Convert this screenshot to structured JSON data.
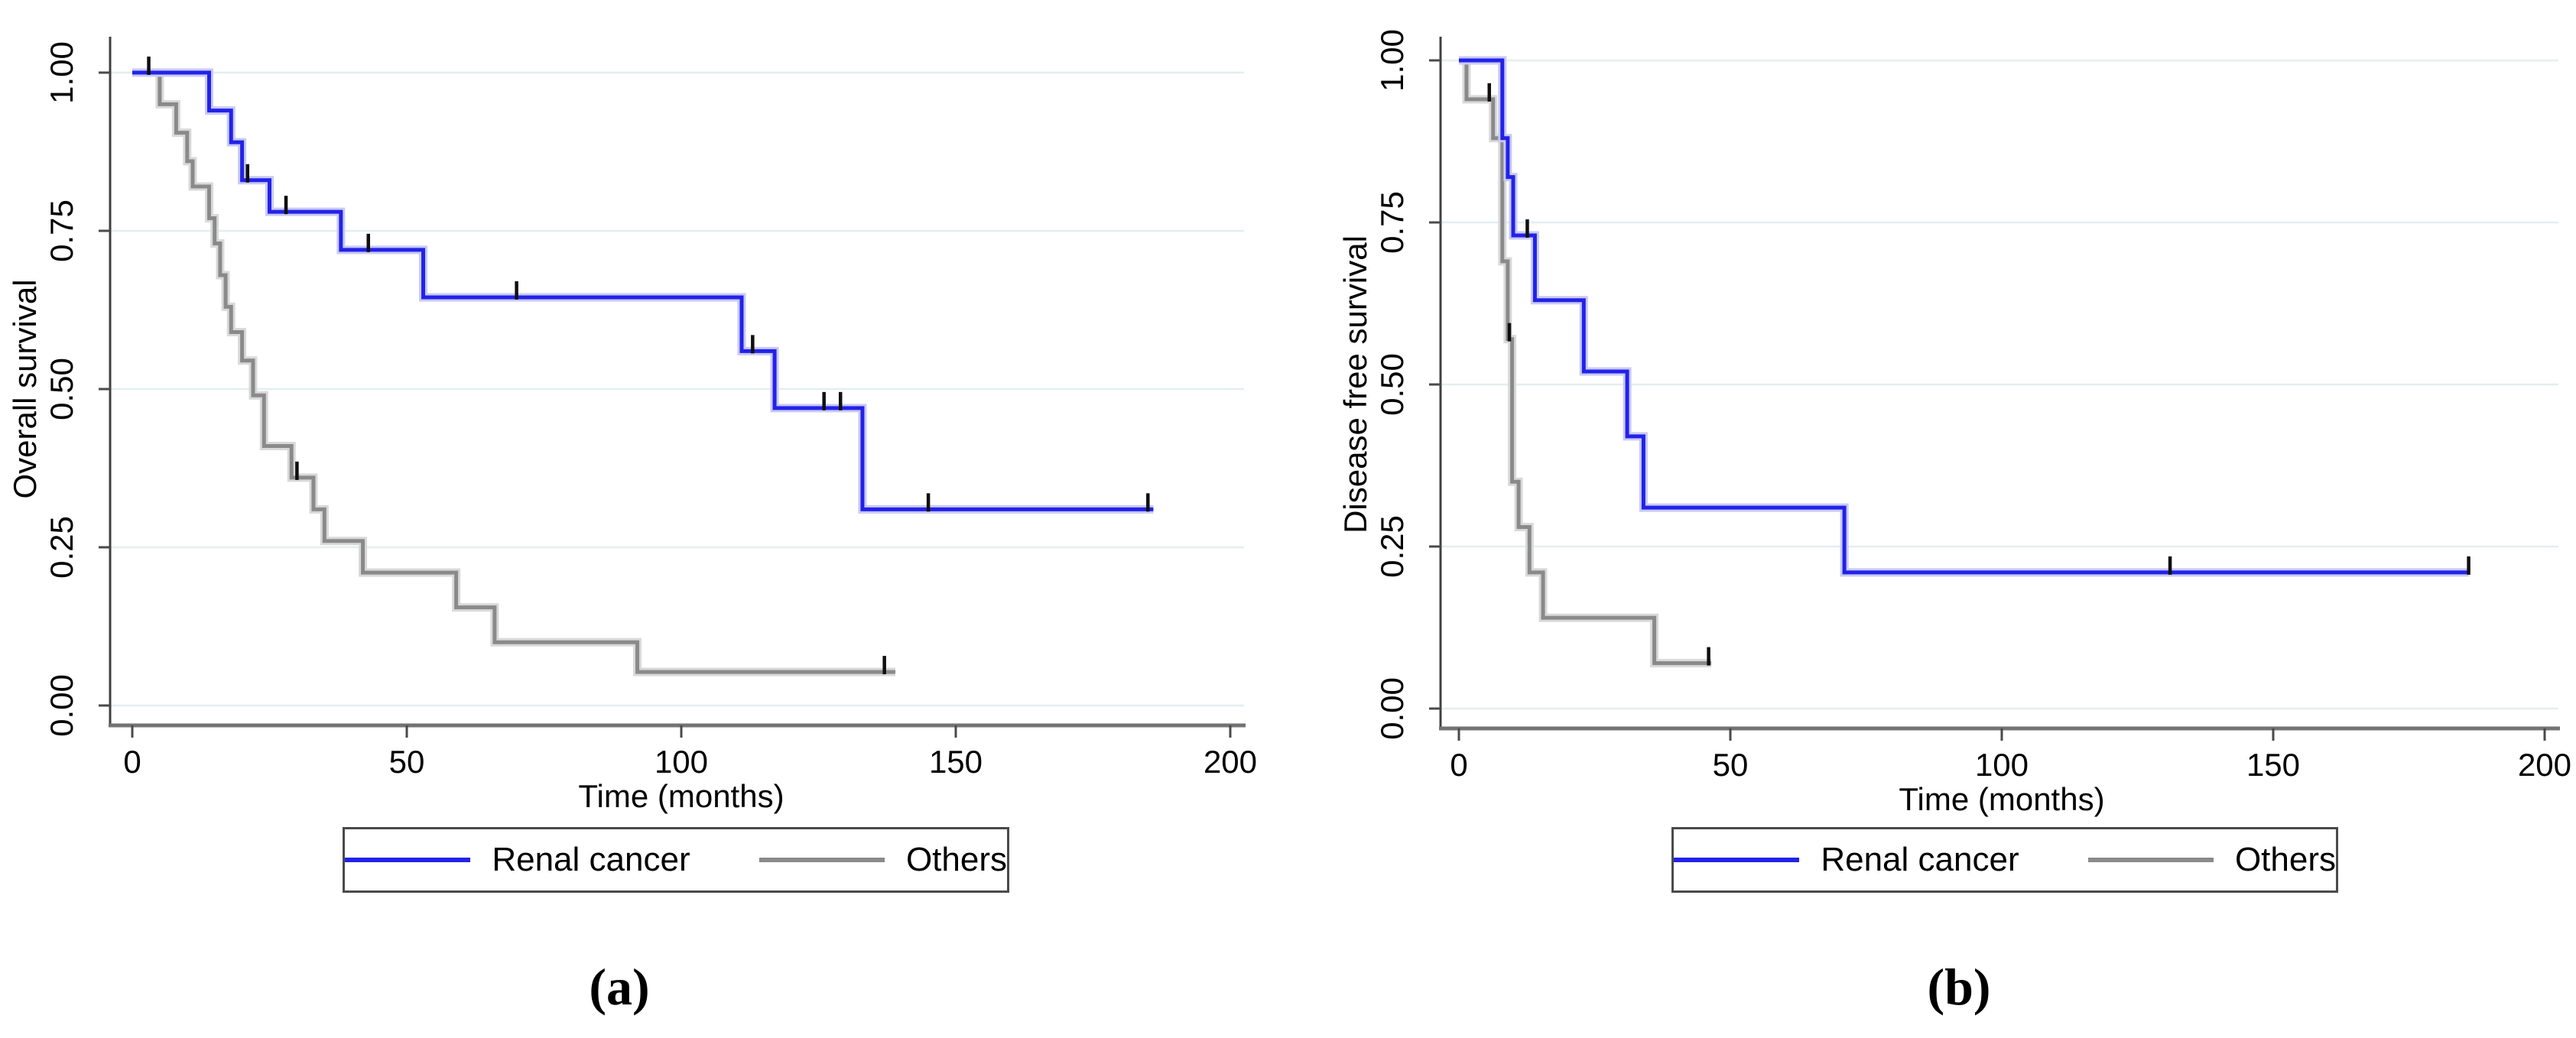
{
  "figure_kind": "kaplan-meier-survival-figure",
  "background": "#ffffff",
  "colors": {
    "renal": "#2222e8",
    "renal_halo": "#c9c9f6",
    "others": "#8a8a8a",
    "others_halo": "#d9d9d9",
    "grid": "#e4eef0",
    "axis_y": "#404040",
    "axis_x": "#737373",
    "tick": "#4a4a4a",
    "censor": "#0f0f0f",
    "text": "#000000",
    "legend_border": "#4a4a4a"
  },
  "chart_data": [
    {
      "type": "line",
      "subtype": "kaplan-meier-step",
      "panel": "a",
      "caption": "(a)",
      "xlabel": "Time (months)",
      "ylabel": "Overall survival",
      "xlim": [
        0,
        200
      ],
      "ylim": [
        0.0,
        1.0
      ],
      "xticks": [
        0,
        50,
        100,
        150,
        200
      ],
      "yticks": [
        {
          "label": "0.00",
          "v": 0.0
        },
        {
          "label": "0.25",
          "v": 0.25
        },
        {
          "label": "0.50",
          "v": 0.5
        },
        {
          "label": "0.75",
          "v": 0.75
        },
        {
          "label": "1.00",
          "v": 1.0
        }
      ],
      "grid": "horizontal",
      "legend_position": "bottom-box",
      "series": [
        {
          "name": "Others",
          "color_key": "others",
          "start": [
            0,
            1.0
          ],
          "steps": [
            [
              5,
              0.95
            ],
            [
              8,
              0.905
            ],
            [
              10,
              0.86
            ],
            [
              11,
              0.82
            ],
            [
              14,
              0.77
            ],
            [
              15,
              0.73
            ],
            [
              16,
              0.68
            ],
            [
              17,
              0.63
            ],
            [
              18,
              0.59
            ],
            [
              20,
              0.545
            ],
            [
              22,
              0.49
            ],
            [
              24,
              0.41
            ],
            [
              29,
              0.36
            ],
            [
              33,
              0.31
            ],
            [
              35,
              0.26
            ],
            [
              42,
              0.21
            ],
            [
              59,
              0.155
            ],
            [
              66,
              0.1
            ],
            [
              92,
              0.053
            ]
          ],
          "end_x": 139,
          "censors": [
            [
              30,
              0.36
            ],
            [
              137,
              0.053
            ]
          ]
        },
        {
          "name": "Renal cancer",
          "color_key": "renal",
          "start": [
            0,
            1.0
          ],
          "steps": [
            [
              14,
              0.94
            ],
            [
              18,
              0.89
            ],
            [
              20,
              0.83
            ],
            [
              25,
              0.78
            ],
            [
              38,
              0.72
            ],
            [
              53,
              0.645
            ],
            [
              111,
              0.56
            ],
            [
              117,
              0.47
            ],
            [
              133,
              0.31
            ]
          ],
          "end_x": 186,
          "censors": [
            [
              3,
              1.0
            ],
            [
              21,
              0.83
            ],
            [
              28,
              0.78
            ],
            [
              43,
              0.72
            ],
            [
              70,
              0.645
            ],
            [
              113,
              0.56
            ],
            [
              126,
              0.47
            ],
            [
              129,
              0.47
            ],
            [
              145,
              0.31
            ],
            [
              185,
              0.31
            ]
          ]
        }
      ]
    },
    {
      "type": "line",
      "subtype": "kaplan-meier-step",
      "panel": "b",
      "caption": "(b)",
      "xlabel": "Time (months)",
      "ylabel": "Disease free survival",
      "xlim": [
        0,
        200
      ],
      "ylim": [
        0.0,
        1.0
      ],
      "xticks": [
        0,
        50,
        100,
        150,
        200
      ],
      "yticks": [
        {
          "label": "0.00",
          "v": 0.0
        },
        {
          "label": "0.25",
          "v": 0.25
        },
        {
          "label": "0.50",
          "v": 0.5
        },
        {
          "label": "0.75",
          "v": 0.75
        },
        {
          "label": "1.00",
          "v": 1.0
        }
      ],
      "grid": "horizontal",
      "legend_position": "bottom-box",
      "series": [
        {
          "name": "Others",
          "color_key": "others",
          "start": [
            0,
            1.0
          ],
          "steps": [
            [
              1.4,
              0.94
            ],
            [
              6.3,
              0.88
            ],
            [
              8,
              0.69
            ],
            [
              9,
              0.57
            ],
            [
              9.8,
              0.35
            ],
            [
              11,
              0.28
            ],
            [
              13,
              0.21
            ],
            [
              15.5,
              0.14
            ],
            [
              36,
              0.07
            ]
          ],
          "end_x": 46.5,
          "censors": [
            [
              5.6,
              0.94
            ],
            [
              9.3,
              0.57
            ],
            [
              46,
              0.07
            ]
          ]
        },
        {
          "name": "Renal cancer",
          "color_key": "renal",
          "start": [
            0,
            1.0
          ],
          "steps": [
            [
              8,
              0.88
            ],
            [
              9,
              0.82
            ],
            [
              10,
              0.73
            ],
            [
              14,
              0.63
            ],
            [
              23,
              0.52
            ],
            [
              31,
              0.42
            ],
            [
              34,
              0.31
            ],
            [
              71,
              0.21
            ]
          ],
          "end_x": 186,
          "censors": [
            [
              12.6,
              0.73
            ],
            [
              131,
              0.21
            ],
            [
              186,
              0.21
            ]
          ]
        }
      ]
    }
  ],
  "legend": {
    "entries": [
      {
        "label": "Renal cancer",
        "color_key": "renal"
      },
      {
        "label": "Others",
        "color_key": "others"
      }
    ]
  }
}
